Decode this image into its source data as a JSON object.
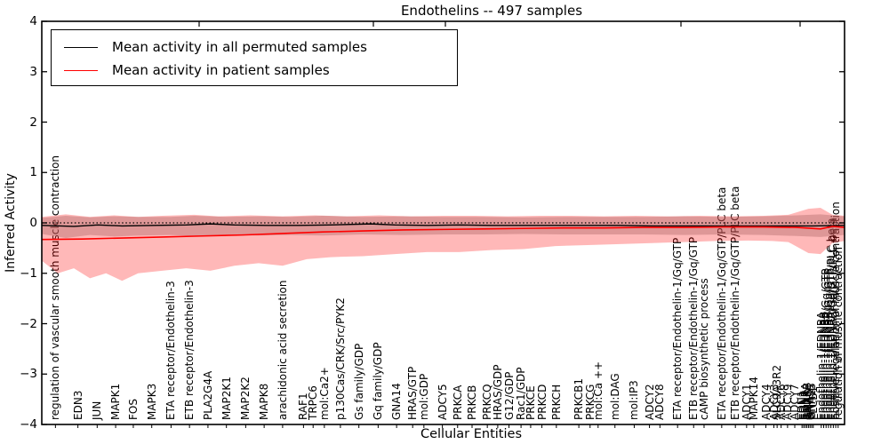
{
  "title": "Endothelins -- 497 samples",
  "axes": {
    "ylabel": "Inferred Activity",
    "xlabel": "Cellular Entities",
    "yticks": [
      "4",
      "3",
      "2",
      "1",
      "0",
      "−1",
      "−2",
      "−3",
      "−4"
    ]
  },
  "legend": {
    "items": [
      {
        "label": "Mean activity in all permuted samples",
        "color": "#000000"
      },
      {
        "label": "Mean activity in patient samples",
        "color": "#ff0000"
      }
    ]
  },
  "chart_data": {
    "type": "line",
    "title": "Endothelins -- 497 samples",
    "xlabel": "Cellular Entities",
    "ylabel": "Inferred Activity",
    "ylim": [
      -4,
      4
    ],
    "grid": false,
    "legend_position": "upper left",
    "note": "x values are fractions of plot width; entities are non-uniformly spaced and overlap heavily at the right edge",
    "entities": [
      {
        "label": "regulation of vascular smooth muscle contraction",
        "x": 0.017
      },
      {
        "label": "EDN3",
        "x": 0.045
      },
      {
        "label": "JUN",
        "x": 0.069
      },
      {
        "label": "MAPK1",
        "x": 0.092
      },
      {
        "label": "FOS",
        "x": 0.114
      },
      {
        "label": "MAPK3",
        "x": 0.137
      },
      {
        "label": "ETA receptor/Endothelin-3",
        "x": 0.161
      },
      {
        "label": "ETB receptor/Endothelin-3",
        "x": 0.184
      },
      {
        "label": "PLA2G4A",
        "x": 0.207
      },
      {
        "label": "MAP2K1",
        "x": 0.23
      },
      {
        "label": "MAP2K2",
        "x": 0.254
      },
      {
        "label": "MAPK8",
        "x": 0.277
      },
      {
        "label": "arachidonic acid secretion",
        "x": 0.3
      },
      {
        "label": "RAF1",
        "x": 0.326
      },
      {
        "label": "TRPC6",
        "x": 0.338
      },
      {
        "label": "mol:Ca2+",
        "x": 0.352
      },
      {
        "label": "p130Cas/CRK/Src/PYK2",
        "x": 0.372
      },
      {
        "label": "Gs family/GDP",
        "x": 0.395
      },
      {
        "label": "Gq family/GDP",
        "x": 0.419
      },
      {
        "label": "GNA14",
        "x": 0.442
      },
      {
        "label": "HRAS/GTP",
        "x": 0.462
      },
      {
        "label": "mol:GDP",
        "x": 0.476
      },
      {
        "label": "ADCY5",
        "x": 0.499
      },
      {
        "label": "PRKCA",
        "x": 0.518
      },
      {
        "label": "PRKCB",
        "x": 0.536
      },
      {
        "label": "PRKCQ",
        "x": 0.555
      },
      {
        "label": "HRAS/GDP",
        "x": 0.568
      },
      {
        "label": "G12/GDP",
        "x": 0.582
      },
      {
        "label": "Rac1/GDP",
        "x": 0.597
      },
      {
        "label": "PRKCE",
        "x": 0.609
      },
      {
        "label": "PRKCD",
        "x": 0.623
      },
      {
        "label": "PRKCH",
        "x": 0.641
      },
      {
        "label": "PRKCB1",
        "x": 0.669
      },
      {
        "label": "PRKCG",
        "x": 0.683
      },
      {
        "label": "mol:Ca ++",
        "x": 0.693
      },
      {
        "label": "mol:DAG",
        "x": 0.714
      },
      {
        "label": "mol:IP3",
        "x": 0.738
      },
      {
        "label": "ADCY2",
        "x": 0.757
      },
      {
        "label": "ADCY8",
        "x": 0.77
      },
      {
        "label": "ETA receptor/Endothelin-1/Gq/GTP",
        "x": 0.792
      },
      {
        "label": "ETB receptor/Endothelin-1/Gq/GTP",
        "x": 0.812
      },
      {
        "label": "cAMP biosynthetic process",
        "x": 0.825
      },
      {
        "label": "ETA receptor/Endothelin-1/Gq/GTP/PLC beta",
        "x": 0.847
      },
      {
        "label": "ETB receptor/Endothelin-1/Gq/GTP/PLC beta",
        "x": 0.864
      },
      {
        "label": "ADCY1",
        "x": 0.878
      },
      {
        "label": "MAPK14",
        "x": 0.887
      },
      {
        "label": "ADCY4",
        "x": 0.902
      },
      {
        "label": "ADCY3",
        "x": 0.912
      },
      {
        "label": "SLC9A3R2",
        "x": 0.916
      },
      {
        "label": "ADCY6",
        "x": 0.921
      },
      {
        "label": "ADCY9",
        "x": 0.929
      },
      {
        "label": "ADCY7",
        "x": 0.938
      },
      {
        "label": "EDN1",
        "x": 0.947
      },
      {
        "label": "EDN2",
        "x": 0.949
      },
      {
        "label": "EDNRA",
        "x": 0.951
      },
      {
        "label": "EDNRB",
        "x": 0.953
      },
      {
        "label": "GNAQ",
        "x": 0.955
      },
      {
        "label": "GNA11",
        "x": 0.957
      },
      {
        "label": "GNA15",
        "x": 0.959
      },
      {
        "label": "PLCB1",
        "x": 0.961
      },
      {
        "label": "Endothelin-1/EDNRA",
        "x": 0.971
      },
      {
        "label": "Endothelin-1/EDNRB",
        "x": 0.974
      },
      {
        "label": "Endothelin-1/EDNRA/Gq/GTP",
        "x": 0.977
      },
      {
        "label": "Endothelin-1/EDNRB/Gq/GTP",
        "x": 0.98
      },
      {
        "label": "Endothelin-1/EDNRA/Gq/GTP/PLC beta",
        "x": 0.983
      },
      {
        "label": "Endothelin-1/EDNRB/Gq/GTP/PLC beta",
        "x": 0.986
      },
      {
        "label": "positive regulation of muscle contraction",
        "x": 0.989
      },
      {
        "label": "regulation of muscle contraction",
        "x": 0.992
      }
    ],
    "series": [
      {
        "name": "Mean activity in all permuted samples",
        "color": "#000000",
        "style": "solid",
        "width": 1.4,
        "points": [
          [
            0,
            -0.05
          ],
          [
            0.04,
            -0.07
          ],
          [
            0.07,
            -0.04
          ],
          [
            0.1,
            -0.06
          ],
          [
            0.14,
            -0.05
          ],
          [
            0.18,
            -0.04
          ],
          [
            0.21,
            -0.02
          ],
          [
            0.24,
            -0.04
          ],
          [
            0.28,
            -0.05
          ],
          [
            0.32,
            -0.05
          ],
          [
            0.36,
            -0.04
          ],
          [
            0.41,
            -0.02
          ],
          [
            0.44,
            -0.04
          ],
          [
            0.48,
            -0.05
          ],
          [
            0.52,
            -0.04
          ],
          [
            0.56,
            -0.05
          ],
          [
            0.6,
            -0.05
          ],
          [
            0.64,
            -0.05
          ],
          [
            0.68,
            -0.05
          ],
          [
            0.72,
            -0.05
          ],
          [
            0.76,
            -0.06
          ],
          [
            0.8,
            -0.06
          ],
          [
            0.84,
            -0.06
          ],
          [
            0.88,
            -0.06
          ],
          [
            0.92,
            -0.06
          ],
          [
            0.96,
            -0.06
          ],
          [
            1,
            -0.05
          ]
        ]
      },
      {
        "name": "zero reference",
        "color": "#000000",
        "style": "dotted",
        "width": 1.2,
        "points": [
          [
            0,
            0
          ],
          [
            1,
            0
          ]
        ]
      },
      {
        "name": "Mean activity in patient samples",
        "color": "#ff0000",
        "style": "solid",
        "width": 1.6,
        "points": [
          [
            0,
            -0.33
          ],
          [
            0.05,
            -0.32
          ],
          [
            0.1,
            -0.3
          ],
          [
            0.15,
            -0.28
          ],
          [
            0.2,
            -0.26
          ],
          [
            0.25,
            -0.24
          ],
          [
            0.3,
            -0.21
          ],
          [
            0.35,
            -0.18
          ],
          [
            0.4,
            -0.16
          ],
          [
            0.45,
            -0.14
          ],
          [
            0.5,
            -0.13
          ],
          [
            0.55,
            -0.12
          ],
          [
            0.6,
            -0.11
          ],
          [
            0.65,
            -0.1
          ],
          [
            0.7,
            -0.1
          ],
          [
            0.75,
            -0.09
          ],
          [
            0.8,
            -0.09
          ],
          [
            0.85,
            -0.08
          ],
          [
            0.9,
            -0.08
          ],
          [
            0.94,
            -0.09
          ],
          [
            0.97,
            -0.12
          ],
          [
            0.985,
            -0.07
          ],
          [
            1,
            -0.09
          ]
        ]
      }
    ],
    "bands": [
      {
        "name": "permuted samples spread",
        "color": "#999999",
        "opacity": 0.45,
        "upper": [
          [
            0,
            0.1
          ],
          [
            0.03,
            0.14
          ],
          [
            0.06,
            0.11
          ],
          [
            0.09,
            0.13
          ],
          [
            0.12,
            0.12
          ],
          [
            0.16,
            0.12
          ],
          [
            0.19,
            0.14
          ],
          [
            0.23,
            0.12
          ],
          [
            0.27,
            0.13
          ],
          [
            0.31,
            0.12
          ],
          [
            0.35,
            0.14
          ],
          [
            0.4,
            0.12
          ],
          [
            0.45,
            0.13
          ],
          [
            0.5,
            0.12
          ],
          [
            0.55,
            0.12
          ],
          [
            0.6,
            0.11
          ],
          [
            0.65,
            0.12
          ],
          [
            0.7,
            0.12
          ],
          [
            0.75,
            0.12
          ],
          [
            0.8,
            0.13
          ],
          [
            0.85,
            0.12
          ],
          [
            0.9,
            0.13
          ],
          [
            0.94,
            0.15
          ],
          [
            0.97,
            0.17
          ],
          [
            1,
            0.13
          ]
        ],
        "lower": [
          [
            0,
            -0.22
          ],
          [
            0.03,
            -0.3
          ],
          [
            0.06,
            -0.24
          ],
          [
            0.09,
            -0.27
          ],
          [
            0.12,
            -0.25
          ],
          [
            0.16,
            -0.24
          ],
          [
            0.19,
            -0.26
          ],
          [
            0.23,
            -0.24
          ],
          [
            0.27,
            -0.25
          ],
          [
            0.31,
            -0.24
          ],
          [
            0.35,
            -0.25
          ],
          [
            0.4,
            -0.23
          ],
          [
            0.45,
            -0.24
          ],
          [
            0.5,
            -0.23
          ],
          [
            0.55,
            -0.23
          ],
          [
            0.6,
            -0.22
          ],
          [
            0.65,
            -0.23
          ],
          [
            0.7,
            -0.23
          ],
          [
            0.75,
            -0.23
          ],
          [
            0.8,
            -0.24
          ],
          [
            0.85,
            -0.23
          ],
          [
            0.9,
            -0.24
          ],
          [
            0.94,
            -0.26
          ],
          [
            0.97,
            -0.28
          ],
          [
            1,
            -0.24
          ]
        ]
      },
      {
        "name": "patient samples spread",
        "color": "#ff0000",
        "opacity": 0.28,
        "upper": [
          [
            0,
            0.12
          ],
          [
            0.03,
            0.17
          ],
          [
            0.06,
            0.12
          ],
          [
            0.09,
            0.15
          ],
          [
            0.12,
            0.12
          ],
          [
            0.15,
            0.14
          ],
          [
            0.19,
            0.16
          ],
          [
            0.22,
            0.13
          ],
          [
            0.26,
            0.15
          ],
          [
            0.3,
            0.13
          ],
          [
            0.34,
            0.15
          ],
          [
            0.38,
            0.13
          ],
          [
            0.42,
            0.15
          ],
          [
            0.46,
            0.13
          ],
          [
            0.5,
            0.14
          ],
          [
            0.54,
            0.14
          ],
          [
            0.58,
            0.13
          ],
          [
            0.62,
            0.14
          ],
          [
            0.66,
            0.14
          ],
          [
            0.7,
            0.13
          ],
          [
            0.74,
            0.14
          ],
          [
            0.78,
            0.13
          ],
          [
            0.82,
            0.14
          ],
          [
            0.86,
            0.13
          ],
          [
            0.9,
            0.14
          ],
          [
            0.93,
            0.16
          ],
          [
            0.955,
            0.28
          ],
          [
            0.97,
            0.3
          ],
          [
            0.985,
            0.16
          ],
          [
            1,
            0.14
          ]
        ],
        "lower": [
          [
            0,
            -0.75
          ],
          [
            0.02,
            -1.0
          ],
          [
            0.04,
            -0.9
          ],
          [
            0.06,
            -1.1
          ],
          [
            0.08,
            -1.0
          ],
          [
            0.1,
            -1.15
          ],
          [
            0.12,
            -1.0
          ],
          [
            0.15,
            -0.95
          ],
          [
            0.18,
            -0.9
          ],
          [
            0.21,
            -0.95
          ],
          [
            0.24,
            -0.85
          ],
          [
            0.27,
            -0.8
          ],
          [
            0.3,
            -0.85
          ],
          [
            0.33,
            -0.72
          ],
          [
            0.36,
            -0.68
          ],
          [
            0.4,
            -0.66
          ],
          [
            0.44,
            -0.62
          ],
          [
            0.48,
            -0.58
          ],
          [
            0.52,
            -0.58
          ],
          [
            0.56,
            -0.54
          ],
          [
            0.6,
            -0.52
          ],
          [
            0.64,
            -0.46
          ],
          [
            0.68,
            -0.44
          ],
          [
            0.72,
            -0.42
          ],
          [
            0.76,
            -0.4
          ],
          [
            0.8,
            -0.38
          ],
          [
            0.84,
            -0.36
          ],
          [
            0.88,
            -0.35
          ],
          [
            0.91,
            -0.36
          ],
          [
            0.93,
            -0.38
          ],
          [
            0.955,
            -0.6
          ],
          [
            0.97,
            -0.62
          ],
          [
            0.985,
            -0.4
          ],
          [
            1,
            -0.36
          ]
        ]
      }
    ]
  }
}
